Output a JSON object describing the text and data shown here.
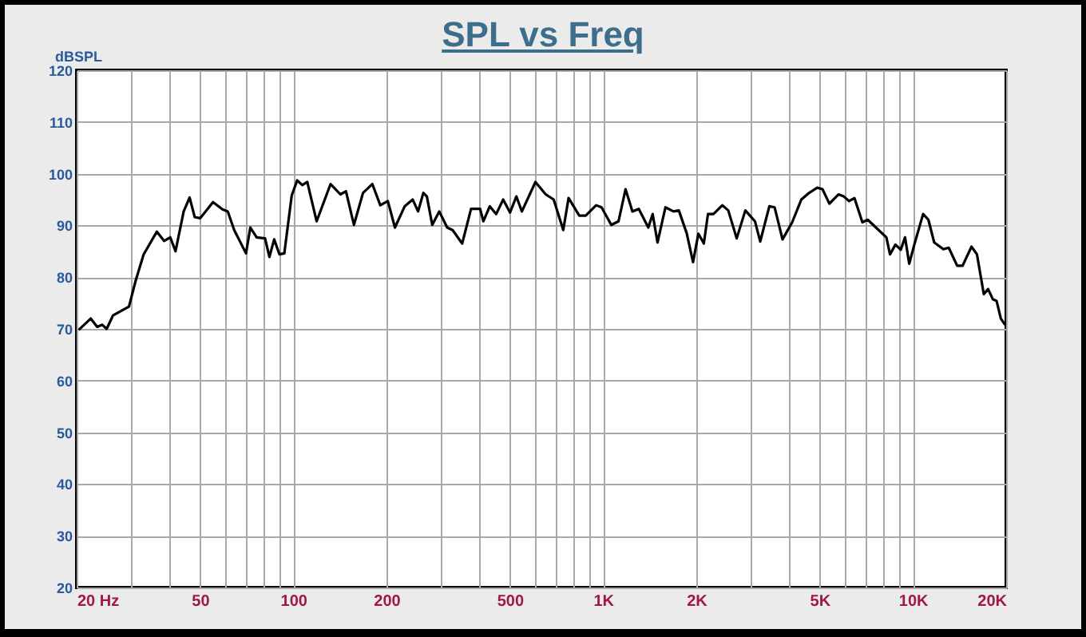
{
  "chart_data": {
    "type": "line",
    "title": "SPL vs Freq",
    "ylabel": "dBSPL",
    "log": "x",
    "grid": true,
    "line_style": "solid",
    "xlim": [
      20,
      20000
    ],
    "ylim": [
      20,
      120
    ],
    "xticks": [
      {
        "value": 20,
        "label": "20 Hz"
      },
      {
        "value": 30,
        "label": null
      },
      {
        "value": 40,
        "label": null
      },
      50,
      {
        "value": 60,
        "label": null
      },
      {
        "value": 70,
        "label": null
      },
      {
        "value": 80,
        "label": null
      },
      {
        "value": 90,
        "label": null
      },
      100,
      200,
      {
        "value": 300,
        "label": null
      },
      {
        "value": 400,
        "label": null
      },
      500,
      {
        "value": 600,
        "label": null
      },
      {
        "value": 700,
        "label": null
      },
      {
        "value": 800,
        "label": null
      },
      {
        "value": 900,
        "label": null
      },
      {
        "value": 1000,
        "label": "1K"
      },
      {
        "value": 2000,
        "label": "2K"
      },
      {
        "value": 3000,
        "label": null
      },
      {
        "value": 4000,
        "label": null
      },
      {
        "value": 5000,
        "label": "5K"
      },
      {
        "value": 6000,
        "label": null
      },
      {
        "value": 7000,
        "label": null
      },
      {
        "value": 8000,
        "label": null
      },
      {
        "value": 9000,
        "label": null
      },
      {
        "value": 10000,
        "label": "10K"
      },
      {
        "value": 20000,
        "label": "20K"
      }
    ],
    "yticks": [
      20,
      30,
      40,
      50,
      60,
      70,
      80,
      90,
      100,
      110,
      120
    ],
    "x": [
      20.3,
      22.2,
      23.3,
      24.2,
      25,
      26.2,
      29.5,
      31,
      32.9,
      36.3,
      38.3,
      40.1,
      41.7,
      44.3,
      46.3,
      48.1,
      50.1,
      55.1,
      59.1,
      61.5,
      64.5,
      70.4,
      72.7,
      76.2,
      81.1,
      83.8,
      86.8,
      90.3,
      93.6,
      98.9,
      103,
      107,
      111,
      119,
      132,
      142,
      148,
      157,
      168,
      180,
      191,
      202,
      213,
      229,
      243,
      253,
      263,
      270,
      281,
      296,
      314,
      327,
      351,
      375,
      401,
      411,
      431,
      452,
      476,
      501,
      525,
      547,
      605,
      653,
      693,
      744,
      774,
      838,
      879,
      950,
      989,
      1063,
      1122,
      1182,
      1244,
      1304,
      1400,
      1446,
      1499,
      1590,
      1688,
      1756,
      1862,
      1952,
      2031,
      2115,
      2181,
      2272,
      2427,
      2536,
      2700,
      2879,
      3092,
      3216,
      3442,
      3578,
      3796,
      4078,
      4364,
      4628,
      4912,
      5108,
      5376,
      5752,
      5982,
      6228,
      6476,
      6872,
      7148,
      8212,
      8438,
      8786,
      9138,
      9434,
      9730,
      10130,
      10790,
      11220,
      11720,
      12550,
      13050,
      13900,
      14470,
      15460,
      16100,
      16940,
      17490,
      18130,
      18630,
      19230,
      19840
    ],
    "series": [
      {
        "color": "#000000",
        "values": [
          69.8,
          72,
          70.4,
          70.8,
          70,
          72.6,
          74.3,
          79.3,
          84.4,
          88.8,
          87,
          87.7,
          85,
          92.7,
          95.4,
          91.6,
          91.4,
          94.5,
          93.1,
          92.7,
          89.1,
          84.6,
          89.6,
          87.7,
          87.5,
          83.9,
          87.3,
          84.4,
          84.6,
          95.8,
          98.7,
          97.8,
          98.4,
          90.8,
          98,
          96,
          96.6,
          90.1,
          96.3,
          98,
          93.9,
          94.7,
          89.6,
          93.7,
          95,
          92.7,
          96.3,
          95.6,
          90.1,
          92.7,
          89.6,
          89.1,
          86.5,
          93.2,
          93.2,
          90.8,
          93.7,
          92.2,
          95,
          92.5,
          95.6,
          92.7,
          98.4,
          96,
          95,
          89.1,
          95.3,
          91.9,
          91.9,
          93.9,
          93.5,
          90.1,
          90.8,
          97,
          92.7,
          93.2,
          89.6,
          92.2,
          86.7,
          93.5,
          92.7,
          92.9,
          88.5,
          82.9,
          88.4,
          86.5,
          92.2,
          92.2,
          93.9,
          92.9,
          87.5,
          92.9,
          90.8,
          86.9,
          93.7,
          93.5,
          87.3,
          90.6,
          95,
          96.3,
          97.3,
          97,
          94.2,
          96,
          95.6,
          94.7,
          95.3,
          90.6,
          91.1,
          87.7,
          84.4,
          86.3,
          85.3,
          87.7,
          82.6,
          86.5,
          92.2,
          91.1,
          86.7,
          85.4,
          85.7,
          82.2,
          82.2,
          85.9,
          84.4,
          76.7,
          77.7,
          75.7,
          75.4,
          72,
          70.8
        ]
      }
    ]
  }
}
